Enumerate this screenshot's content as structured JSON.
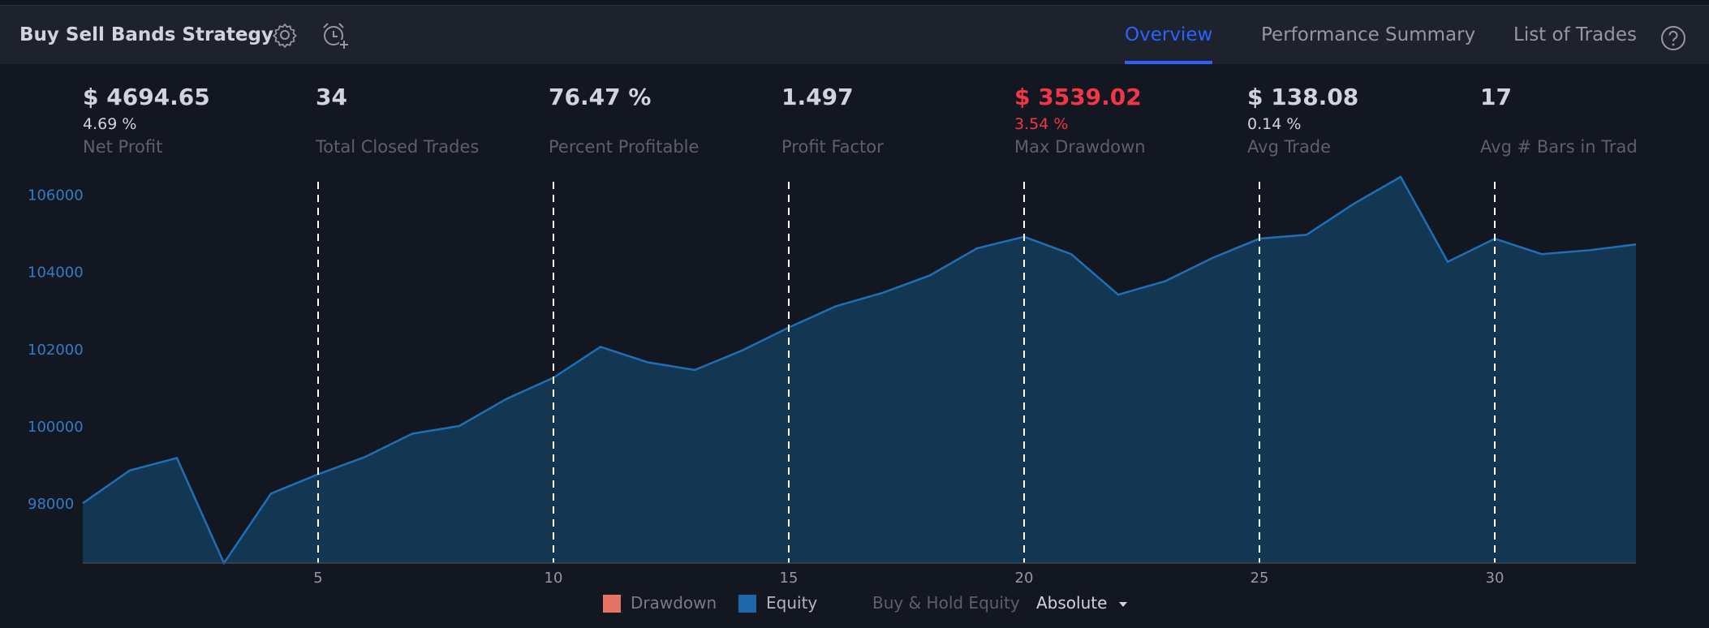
{
  "header": {
    "title": "Buy Sell Bands Strategy",
    "icons": [
      "gear-icon",
      "alarm-add-icon"
    ],
    "tabs": [
      {
        "label": "Overview",
        "active": true
      },
      {
        "label": "Performance Summary",
        "active": false
      },
      {
        "label": "List of Trades",
        "active": false
      }
    ],
    "help_icon": "help-icon",
    "accent_color": "#2962ff"
  },
  "metrics": [
    {
      "value": "$ 4694.65",
      "sub": "4.69 %",
      "label": "Net Profit",
      "negative": false
    },
    {
      "value": "34",
      "sub": "",
      "label": "Total Closed Trades",
      "negative": false
    },
    {
      "value": "76.47 %",
      "sub": "",
      "label": "Percent Profitable",
      "negative": false
    },
    {
      "value": "1.497",
      "sub": "",
      "label": "Profit Factor",
      "negative": false
    },
    {
      "value": "$ 3539.02",
      "sub": "3.54 %",
      "label": "Max Drawdown",
      "negative": true
    },
    {
      "value": "$ 138.08",
      "sub": "0.14 %",
      "label": "Avg Trade",
      "negative": false
    },
    {
      "value": "17",
      "sub": "",
      "label": "Avg # Bars in Trades",
      "negative": false
    }
  ],
  "chart_data": {
    "type": "area",
    "x": [
      0,
      1,
      2,
      3,
      4,
      5,
      6,
      7,
      8,
      9,
      10,
      11,
      12,
      13,
      14,
      15,
      16,
      17,
      18,
      19,
      20,
      21,
      22,
      23,
      24,
      25,
      26,
      27,
      28,
      29,
      30,
      31,
      32,
      33
    ],
    "series": [
      {
        "name": "Equity",
        "color": "#2962ff",
        "values": [
          98000,
          98850,
          99170,
          96450,
          98250,
          98750,
          99200,
          99800,
          100000,
          100700,
          101250,
          102050,
          101650,
          101450,
          101950,
          102550,
          103100,
          103450,
          103900,
          104600,
          104900,
          104450,
          103400,
          103750,
          104350,
          104850,
          104950,
          105750,
          106450,
          104250,
          104850,
          104450,
          104550,
          104700
        ]
      }
    ],
    "yticks": [
      98000,
      100000,
      102000,
      104000,
      106000
    ],
    "xticks": [
      5,
      10,
      15,
      20,
      25,
      30
    ],
    "ylim": [
      96450,
      106450
    ],
    "xlim": [
      0,
      33
    ],
    "vertical_markers": [
      5,
      10,
      15,
      20,
      25,
      30
    ]
  },
  "legend": {
    "items": [
      {
        "label": "Drawdown",
        "color": "#e57363",
        "enabled": false
      },
      {
        "label": "Equity",
        "color": "#1d67a8",
        "enabled": true
      },
      {
        "label": "Buy & Hold Equity",
        "enabled": false
      }
    ],
    "mode": "Absolute"
  }
}
